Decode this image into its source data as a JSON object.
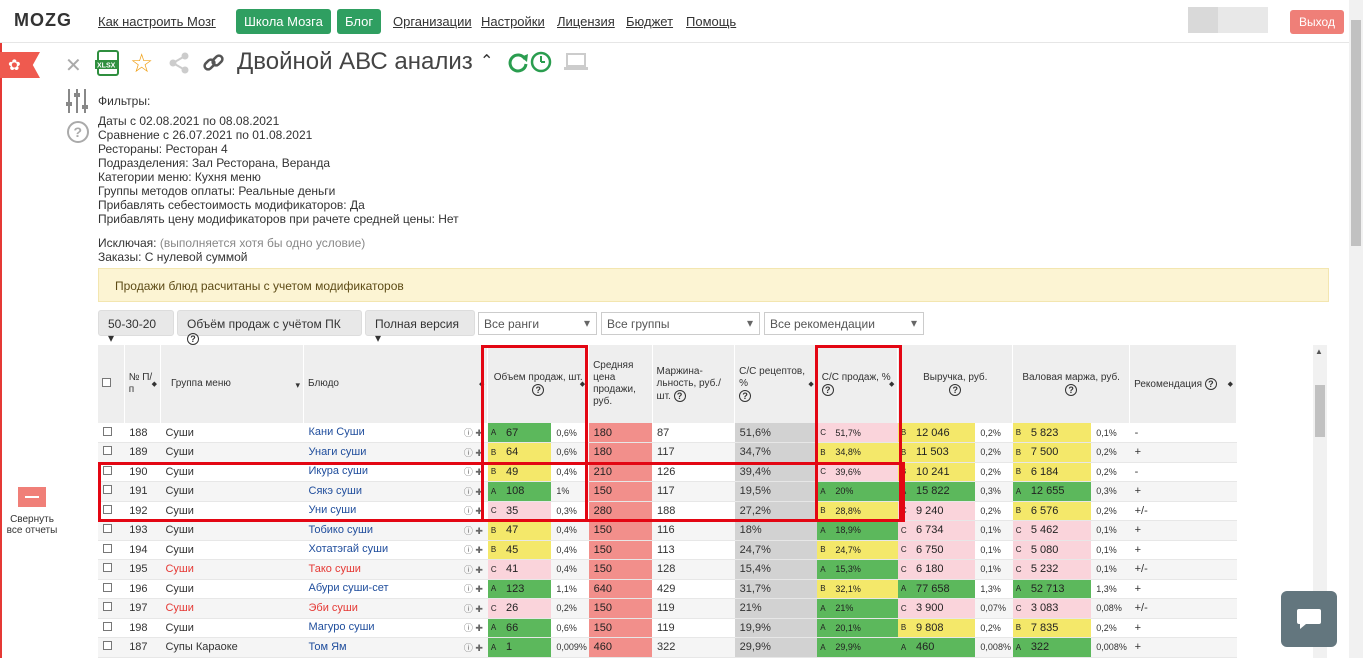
{
  "app": {
    "logo": "MOZG"
  },
  "topnav": {
    "how_to": "Как настроить Мозг",
    "school": "Школа Мозга",
    "blog": "Блог",
    "orgs": "Организации",
    "settings": "Настройки",
    "license": "Лицензия",
    "budget": "Бюджет",
    "help": "Помощь",
    "logout": "Выход"
  },
  "report": {
    "title": "Двойной АВС анализ",
    "filters_title": "Фильтры:",
    "filters": [
      "Даты с 02.08.2021 по 08.08.2021",
      "Сравнение с 26.07.2021 по 01.08.2021",
      "Рестораны: Ресторан 4",
      "Подразделения: Зал Ресторана, Веранда",
      "Категории меню: Кухня меню",
      "Группы методов оплаты: Реальные деньги",
      "Прибавлять себестоимость модификаторов: Да",
      "Прибавлять цену модификаторов при рачете средней цены: Нет"
    ],
    "exclude_label": "Исключая:",
    "exclude_note": "(выполняется хотя бы одно условие)",
    "orders_filter": "Заказы: С нулевой суммой",
    "notice": "Продажи блюд расчитаны с учетом модификаторов",
    "collapse_label": "Свернуть все отчеты"
  },
  "controls": {
    "ratio": "50-30-20",
    "volume": "Объём продаж с учётом ПК",
    "version": "Полная версия",
    "ranks": "Все ранги",
    "groups": "Все группы",
    "recs": "Все рекомендации"
  },
  "table": {
    "headers": {
      "num": "№ П/п",
      "group": "Группа меню",
      "dish": "Блюдо",
      "qty": "Объем продаж, шт.",
      "avg_price": "Средняя цена продажи, руб.",
      "margin": "Маржина-льность, руб./шт.",
      "cost_recipe": "С/С рецептов, %",
      "cost_sales": "С/С продаж, %",
      "revenue": "Выручка, руб.",
      "gross": "Валовая маржа, руб.",
      "rec": "Рекомендация"
    },
    "rows": [
      {
        "n": "188",
        "group": "Суши",
        "dish": "Кани Суши",
        "ql": "A",
        "qty": "67",
        "qp": "0,6%",
        "price": "180",
        "margin": "87",
        "cr": "51,6%",
        "cl": "C",
        "cs": "51,7%",
        "rl": "B",
        "rev": "12 046",
        "rp": "0,2%",
        "gl": "B",
        "gm": "5 823",
        "gp": "0,1%",
        "rec": "-",
        "red": false
      },
      {
        "n": "189",
        "group": "Суши",
        "dish": "Унаги суши",
        "ql": "B",
        "qty": "64",
        "qp": "0,6%",
        "price": "180",
        "margin": "117",
        "cr": "34,7%",
        "cl": "B",
        "cs": "34,8%",
        "rl": "B",
        "rev": "11 503",
        "rp": "0,2%",
        "gl": "B",
        "gm": "7 500",
        "gp": "0,2%",
        "rec": "+",
        "red": false
      },
      {
        "n": "190",
        "group": "Суши",
        "dish": "Икура суши",
        "ql": "B",
        "qty": "49",
        "qp": "0,4%",
        "price": "210",
        "margin": "126",
        "cr": "39,4%",
        "cl": "C",
        "cs": "39,6%",
        "rl": "B",
        "rev": "10 241",
        "rp": "0,2%",
        "gl": "B",
        "gm": "6 184",
        "gp": "0,2%",
        "rec": "-",
        "red": false
      },
      {
        "n": "191",
        "group": "Суши",
        "dish": "Сякэ суши",
        "ql": "A",
        "qty": "108",
        "qp": "1%",
        "price": "150",
        "margin": "117",
        "cr": "19,5%",
        "cl": "A",
        "cs": "20%",
        "rl": "A",
        "rev": "15 822",
        "rp": "0,3%",
        "gl": "A",
        "gm": "12 655",
        "gp": "0,3%",
        "rec": "+",
        "red": false
      },
      {
        "n": "192",
        "group": "Суши",
        "dish": "Уни суши",
        "ql": "C",
        "qty": "35",
        "qp": "0,3%",
        "price": "280",
        "margin": "188",
        "cr": "27,2%",
        "cl": "B",
        "cs": "28,8%",
        "rl": "C",
        "rev": "9 240",
        "rp": "0,2%",
        "gl": "B",
        "gm": "6 576",
        "gp": "0,2%",
        "rec": "+/-",
        "red": false
      },
      {
        "n": "193",
        "group": "Суши",
        "dish": "Тобико суши",
        "ql": "B",
        "qty": "47",
        "qp": "0,4%",
        "price": "150",
        "margin": "116",
        "cr": "18%",
        "cl": "A",
        "cs": "18,9%",
        "rl": "C",
        "rev": "6 734",
        "rp": "0,1%",
        "gl": "C",
        "gm": "5 462",
        "gp": "0,1%",
        "rec": "+",
        "red": false
      },
      {
        "n": "194",
        "group": "Суши",
        "dish": "Хотатэгай суши",
        "ql": "B",
        "qty": "45",
        "qp": "0,4%",
        "price": "150",
        "margin": "113",
        "cr": "24,7%",
        "cl": "B",
        "cs": "24,7%",
        "rl": "C",
        "rev": "6 750",
        "rp": "0,1%",
        "gl": "C",
        "gm": "5 080",
        "gp": "0,1%",
        "rec": "+",
        "red": false
      },
      {
        "n": "195",
        "group": "Суши",
        "dish": "Тако суши",
        "ql": "C",
        "qty": "41",
        "qp": "0,4%",
        "price": "150",
        "margin": "128",
        "cr": "15,4%",
        "cl": "A",
        "cs": "15,3%",
        "rl": "C",
        "rev": "6 180",
        "rp": "0,1%",
        "gl": "C",
        "gm": "5 232",
        "gp": "0,1%",
        "rec": "+/-",
        "red": true
      },
      {
        "n": "196",
        "group": "Суши",
        "dish": "Абури суши-сет",
        "ql": "A",
        "qty": "123",
        "qp": "1,1%",
        "price": "640",
        "margin": "429",
        "cr": "31,7%",
        "cl": "B",
        "cs": "32,1%",
        "rl": "A",
        "rev": "77 658",
        "rp": "1,3%",
        "gl": "A",
        "gm": "52 713",
        "gp": "1,3%",
        "rec": "+",
        "red": false
      },
      {
        "n": "197",
        "group": "Суши",
        "dish": "Эби суши",
        "ql": "C",
        "qty": "26",
        "qp": "0,2%",
        "price": "150",
        "margin": "119",
        "cr": "21%",
        "cl": "A",
        "cs": "21%",
        "rl": "C",
        "rev": "3 900",
        "rp": "0,07%",
        "gl": "C",
        "gm": "3 083",
        "gp": "0,08%",
        "rec": "+/-",
        "red": true
      },
      {
        "n": "198",
        "group": "Суши",
        "dish": "Магуро суши",
        "ql": "A",
        "qty": "66",
        "qp": "0,6%",
        "price": "150",
        "margin": "119",
        "cr": "19,9%",
        "cl": "A",
        "cs": "20,1%",
        "rl": "B",
        "rev": "9 808",
        "rp": "0,2%",
        "gl": "B",
        "gm": "7 835",
        "gp": "0,2%",
        "rec": "+",
        "red": false
      },
      {
        "n": "187",
        "group": "Супы Караоке",
        "dish": "Том Ям",
        "ql": "A",
        "qty": "1",
        "qp": "0,009%",
        "price": "460",
        "margin": "322",
        "cr": "29,9%",
        "cl": "A",
        "cs": "29,9%",
        "rl": "A",
        "rev": "460",
        "rp": "0,008%",
        "gl": "A",
        "gm": "322",
        "gp": "0,008%",
        "rec": "+",
        "red": false
      }
    ]
  },
  "colors": {
    "green": "#5cb85c",
    "yellow": "#f4e86a",
    "pink": "#fad4db",
    "red": "#f28f8b",
    "highlight": "#e30613"
  }
}
